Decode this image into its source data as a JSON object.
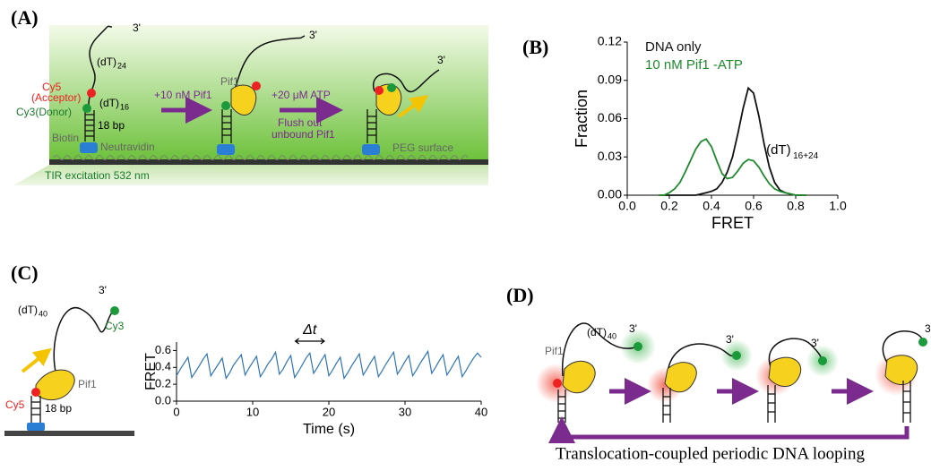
{
  "panels": {
    "a": {
      "label": "(A)",
      "three_prime_1": "3'",
      "dt24": "(dT)",
      "dt24_sub": "24",
      "cy5": "Cy5",
      "acceptor": "(Acceptor)",
      "dt16": "(dT)",
      "dt16_sub": "16",
      "cy3": "Cy3(Donor)",
      "bp": "18 bp",
      "biotin": "Biotin",
      "neutravidin": "Neutravidin",
      "step1": "+10 nM Pif1",
      "pif1": "Pif1",
      "three_prime_2": "3'",
      "step2": "+20 μM ATP",
      "flush1": "Flush out",
      "flush2": "unbound Pif1",
      "three_prime_3": "3'",
      "peg": "PEG surface",
      "tir": "TIR  excitation 532 nm"
    },
    "b": {
      "label": "(B)"
    },
    "c": {
      "label": "(C)",
      "dt40": "(dT)",
      "dt40_sub": "40",
      "three_prime": "3'",
      "cy3": "Cy3",
      "cy5": "Cy5",
      "pif1": "Pif1",
      "bp": "18 bp"
    },
    "d": {
      "label": "(D)",
      "pif1": "Pif1",
      "dt40": "(dT)",
      "dt40_sub": "40",
      "tp1": "3'",
      "tp2": "3'",
      "tp3": "3'",
      "tp4": "3",
      "caption": "Translocation-coupled periodic DNA looping"
    }
  },
  "chart_data": [
    {
      "type": "line",
      "x": [
        0.15,
        0.175,
        0.2,
        0.225,
        0.25,
        0.275,
        0.3,
        0.325,
        0.35,
        0.375,
        0.4,
        0.425,
        0.45,
        0.475,
        0.5,
        0.525,
        0.55,
        0.575,
        0.6,
        0.625,
        0.65,
        0.675,
        0.7,
        0.725,
        0.75,
        0.775,
        0.8,
        0.825,
        0.85
      ],
      "series": [
        {
          "name": "DNA only",
          "color": "#111111",
          "values": [
            0,
            0,
            0,
            0,
            0,
            0,
            0,
            0,
            0.001,
            0.002,
            0.003,
            0.005,
            0.01,
            0.018,
            0.03,
            0.048,
            0.068,
            0.084,
            0.08,
            0.062,
            0.04,
            0.022,
            0.01,
            0.004,
            0.002,
            0.001,
            0,
            0,
            0
          ]
        },
        {
          "name": "10 nM Pif1  -ATP",
          "color": "#1f8a2e",
          "values": [
            0,
            0,
            0.002,
            0.005,
            0.01,
            0.018,
            0.027,
            0.036,
            0.042,
            0.044,
            0.038,
            0.027,
            0.017,
            0.013,
            0.014,
            0.019,
            0.025,
            0.028,
            0.027,
            0.022,
            0.015,
            0.009,
            0.005,
            0.003,
            0.002,
            0.001,
            0,
            0,
            0
          ]
        }
      ],
      "xlim": [
        0,
        1.0
      ],
      "xticks": [
        {
          "value": 0,
          "label": "0.0"
        },
        {
          "value": 0.2,
          "label": "0.2"
        },
        {
          "value": 0.4,
          "label": "0.4"
        },
        {
          "value": 0.6,
          "label": "0.6"
        },
        {
          "value": 0.8,
          "label": "0.8"
        },
        {
          "value": 1.0,
          "label": "1.0"
        }
      ],
      "ylim": [
        0,
        0.12
      ],
      "yticks": [
        {
          "value": 0,
          "label": "0.00"
        },
        {
          "value": 0.03,
          "label": "0.03"
        },
        {
          "value": 0.06,
          "label": "0.06"
        },
        {
          "value": 0.09,
          "label": "0.09"
        },
        0.12
      ],
      "x_label": "FRET",
      "y_label": "Fraction",
      "annotation": {
        "text": "(dT)",
        "sub": "16+24"
      }
    },
    {
      "type": "line",
      "x": [
        0,
        0.5,
        1,
        1.5,
        2,
        2.5,
        3,
        3.5,
        4,
        4.5,
        5,
        5.5,
        6,
        6.5,
        7,
        7.5,
        8,
        8.5,
        9,
        9.5,
        10,
        10.5,
        11,
        11.5,
        12,
        12.5,
        13,
        13.5,
        14,
        14.5,
        15,
        15.5,
        16,
        16.5,
        17,
        17.5,
        18,
        18.5,
        19,
        19.5,
        20,
        20.5,
        21,
        21.5,
        22,
        22.5,
        23,
        23.5,
        24,
        24.5,
        25,
        25.5,
        26,
        26.5,
        27,
        27.5,
        28,
        28.5,
        29,
        29.5,
        30,
        30.5,
        31,
        31.5,
        32,
        32.5,
        33,
        33.5,
        34,
        34.5,
        35,
        35.5,
        36,
        36.5,
        37,
        37.5,
        38,
        38.5,
        39,
        39.5,
        40
      ],
      "series": [
        {
          "color": "#2e75b6",
          "values": [
            0.3,
            0.38,
            0.45,
            0.52,
            0.28,
            0.35,
            0.42,
            0.5,
            0.56,
            0.3,
            0.37,
            0.44,
            0.51,
            0.27,
            0.34,
            0.43,
            0.49,
            0.55,
            0.31,
            0.39,
            0.46,
            0.53,
            0.29,
            0.36,
            0.44,
            0.5,
            0.58,
            0.32,
            0.38,
            0.47,
            0.54,
            0.28,
            0.35,
            0.43,
            0.51,
            0.57,
            0.33,
            0.4,
            0.48,
            0.55,
            0.3,
            0.37,
            0.45,
            0.52,
            0.27,
            0.34,
            0.42,
            0.49,
            0.56,
            0.31,
            0.38,
            0.46,
            0.53,
            0.29,
            0.36,
            0.44,
            0.51,
            0.58,
            0.32,
            0.39,
            0.47,
            0.54,
            0.3,
            0.37,
            0.45,
            0.52,
            0.59,
            0.33,
            0.4,
            0.48,
            0.55,
            0.31,
            0.38,
            0.46,
            0.53,
            0.29,
            0.36,
            0.44,
            0.51,
            0.57,
            0.52
          ]
        }
      ],
      "xlim": [
        0,
        40
      ],
      "xticks": [
        0,
        10,
        20,
        30,
        40
      ],
      "ylim": [
        0,
        0.7
      ],
      "yticks": [
        {
          "value": 0,
          "label": "0.0"
        },
        0.2,
        0.4,
        0.6
      ],
      "x_label": "Time (s)",
      "y_label": "FRET",
      "annotation": {
        "text": "Δt"
      }
    }
  ]
}
